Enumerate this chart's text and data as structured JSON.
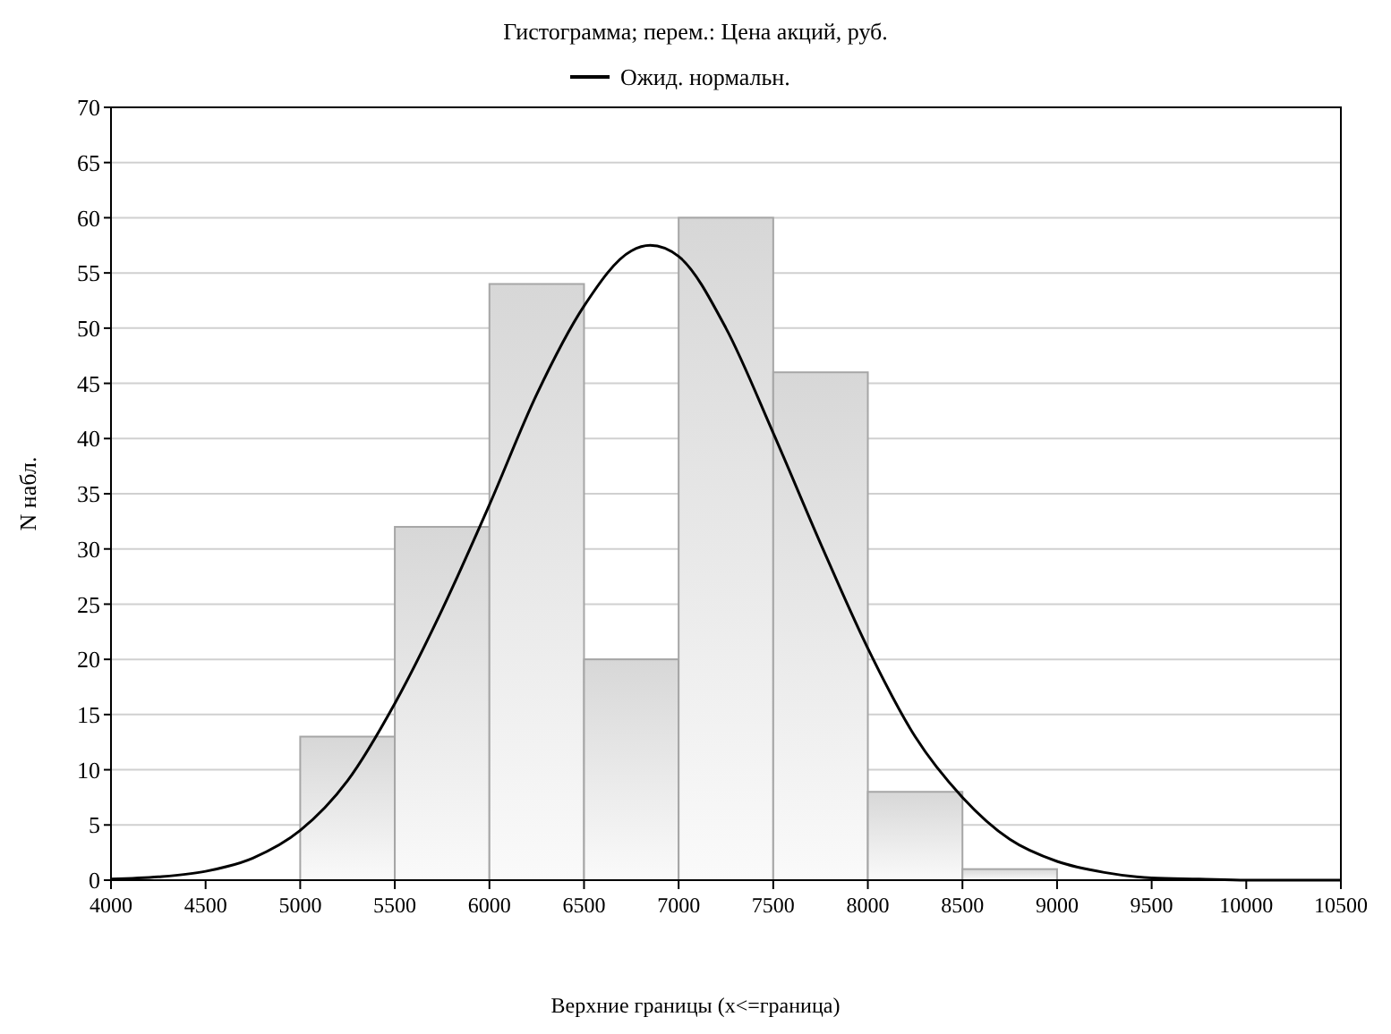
{
  "chart_data": {
    "type": "histogram",
    "title": "Гистограмма; перем.: Цена акций, руб.",
    "xlabel": "Верхние границы (x<=граница)",
    "ylabel": "N набл.",
    "xlim": [
      4000,
      10500
    ],
    "xticks": [
      4000,
      4500,
      5000,
      5500,
      6000,
      6500,
      7000,
      7500,
      8000,
      8500,
      9000,
      9500,
      10000,
      10500
    ],
    "ylim": [
      0,
      70
    ],
    "yticks": [
      0,
      5,
      10,
      15,
      20,
      25,
      30,
      35,
      40,
      45,
      50,
      55,
      60,
      65,
      70
    ],
    "grid": "y",
    "legend": "top",
    "series": [
      {
        "color": "#a6a6a6",
        "bins": [
          5000,
          5500,
          6000,
          6500,
          7000,
          7500,
          8000,
          8500,
          9000
        ],
        "values": [
          13,
          32,
          54,
          20,
          60,
          46,
          8,
          1
        ]
      },
      {
        "type": "line",
        "name": "Ожид. нормальн.",
        "color": "#000000",
        "x": [
          4000,
          4250,
          4500,
          4750,
          5000,
          5250,
          5500,
          5750,
          6000,
          6250,
          6500,
          6750,
          6850,
          7000,
          7250,
          7500,
          7750,
          8000,
          8250,
          8500,
          8750,
          9000,
          9250,
          9500,
          9750,
          10000,
          10500
        ],
        "values": [
          0.1,
          0.3,
          0.8,
          2,
          4.5,
          9,
          16,
          24.5,
          34,
          44,
          52,
          57,
          57.5,
          56.5,
          50,
          40.5,
          30.5,
          21,
          13,
          7.5,
          3.7,
          1.7,
          0.7,
          0.2,
          0.1,
          0,
          0
        ]
      }
    ]
  }
}
